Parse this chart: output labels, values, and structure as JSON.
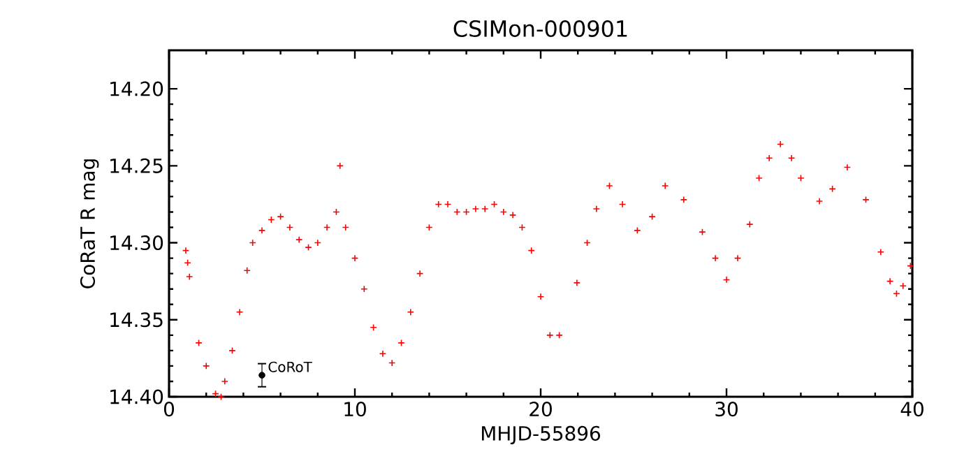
{
  "chart_data": {
    "type": "scatter",
    "title": "CSIMon-000901",
    "xlabel": "MHJD-55896",
    "ylabel": "CoRaT R mag",
    "xlim": [
      0,
      40
    ],
    "ylim": [
      14.4,
      14.175
    ],
    "xticks": [
      0,
      10,
      20,
      30,
      40
    ],
    "yticks": [
      {
        "value": 14.2,
        "label": "14.20"
      },
      {
        "value": 14.25,
        "label": "14.25"
      },
      {
        "value": 14.3,
        "label": "14.30"
      },
      {
        "value": 14.35,
        "label": "14.35"
      },
      {
        "value": 14.4,
        "label": "14.40"
      }
    ],
    "annotations": [
      {
        "text": "CoRoT",
        "x": 5,
        "y": 14.386
      }
    ],
    "series": [
      {
        "marker": "cross",
        "color": "#ff0000",
        "x": [
          0.9,
          1.0,
          1.1,
          1.6,
          2.0,
          2.5,
          2.8,
          3.0,
          3.4,
          3.8,
          4.2,
          4.5,
          5.0,
          5.5,
          6.0,
          6.5,
          7.0,
          7.5,
          8.0,
          8.5,
          9.0,
          9.2,
          9.5,
          10.0,
          10.5,
          11.0,
          11.5,
          12.0,
          12.5,
          13.0,
          13.5,
          14.0,
          14.5,
          15.0,
          15.5,
          16.0,
          16.5,
          17.0,
          17.5,
          18.0,
          18.5,
          19.0,
          19.5,
          20.0,
          20.5,
          21.0,
          21.95,
          22.5,
          23.0,
          23.7,
          24.4,
          25.2,
          26.0,
          26.7,
          27.7,
          28.7,
          29.4,
          30.0,
          30.6,
          31.25,
          31.75,
          32.3,
          32.9,
          33.5,
          34.0,
          35.0,
          35.7,
          36.5,
          37.5,
          38.3,
          38.8,
          39.15,
          39.5,
          39.9
        ],
        "values": [
          14.305,
          14.313,
          14.322,
          14.365,
          14.38,
          14.398,
          14.4,
          14.39,
          14.37,
          14.345,
          14.318,
          14.3,
          14.292,
          14.285,
          14.283,
          14.29,
          14.298,
          14.303,
          14.3,
          14.29,
          14.28,
          14.25,
          14.29,
          14.31,
          14.33,
          14.355,
          14.372,
          14.378,
          14.365,
          14.345,
          14.32,
          14.29,
          14.275,
          14.275,
          14.28,
          14.28,
          14.278,
          14.278,
          14.275,
          14.28,
          14.282,
          14.29,
          14.305,
          14.335,
          14.36,
          14.36,
          14.326,
          14.3,
          14.278,
          14.263,
          14.275,
          14.292,
          14.283,
          14.263,
          14.272,
          14.293,
          14.31,
          14.324,
          14.31,
          14.288,
          14.258,
          14.245,
          14.236,
          14.245,
          14.258,
          14.273,
          14.265,
          14.251,
          14.272,
          14.306,
          14.325,
          14.333,
          14.328,
          14.315
        ]
      },
      {
        "marker": "circle",
        "color": "#000000",
        "x": [
          5
        ],
        "values": [
          14.386
        ],
        "errors": [
          0.0075
        ]
      }
    ]
  }
}
